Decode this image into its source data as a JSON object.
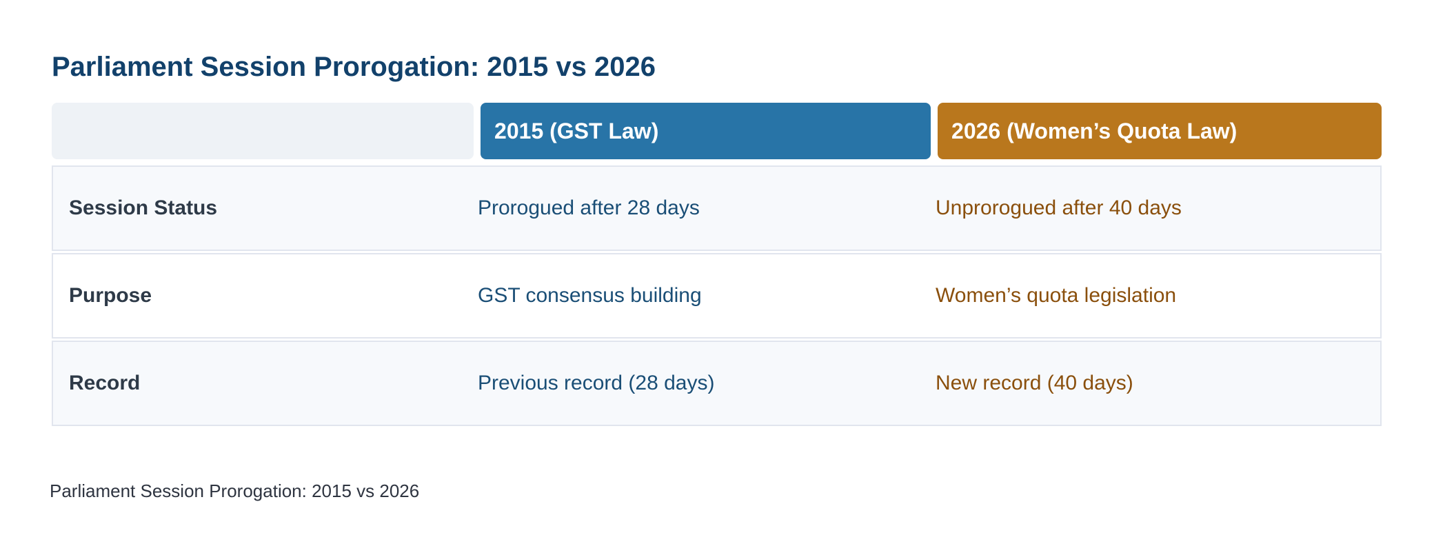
{
  "title": "Parliament Session Prorogation: 2015 vs 2026",
  "colors": {
    "title": "#12416b",
    "header_blank": "#eef2f6",
    "header_2015": "#2874a7",
    "header_2026": "#b9771d",
    "text_2015": "#1a4e76",
    "text_2026": "#8a4f0c"
  },
  "table": {
    "headers": [
      "",
      "2015 (GST Law)",
      "2026 (Women’s Quota Law)"
    ],
    "rows": [
      {
        "label": "Session Status",
        "v2015": "Prorogued after 28 days",
        "v2026": "Unprorogued after 40 days"
      },
      {
        "label": "Purpose",
        "v2015": "GST consensus building",
        "v2026": "Women’s quota legislation"
      },
      {
        "label": "Record",
        "v2015": "Previous record (28 days)",
        "v2026": "New record (40 days)"
      }
    ]
  },
  "caption": "Parliament Session Prorogation: 2015 vs 2026"
}
